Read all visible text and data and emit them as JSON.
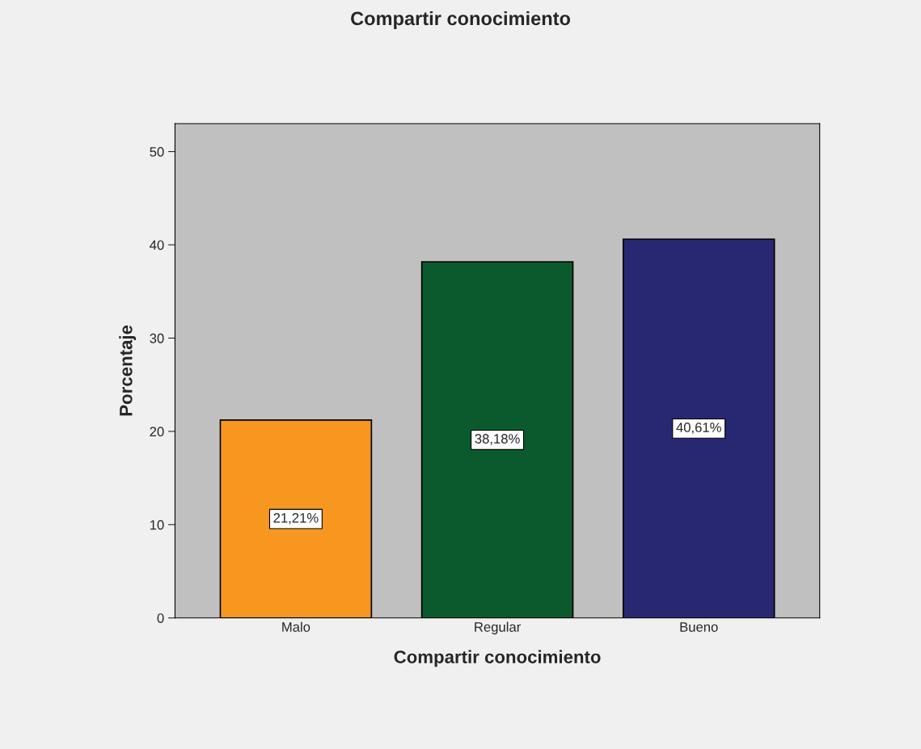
{
  "chart_data": {
    "type": "bar",
    "title": "Compartir conocimiento",
    "xlabel": "Compartir conocimiento",
    "ylabel": "Porcentaje",
    "categories": [
      "Malo",
      "Regular",
      "Bueno"
    ],
    "values": [
      21.21,
      38.18,
      40.61
    ],
    "colors": [
      "#f7971f",
      "#0b5a2e",
      "#282872"
    ],
    "value_labels": [
      "21,21%",
      "38,18%",
      "40,61%"
    ],
    "ylim": [
      0,
      53
    ],
    "yticks": [
      0,
      10,
      20,
      30,
      40,
      50
    ],
    "grid": false
  }
}
